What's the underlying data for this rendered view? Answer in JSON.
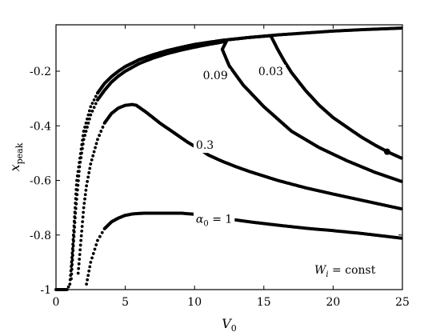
{
  "chart_data": {
    "type": "scatter",
    "xlabel": "V",
    "xlabel_sub": "0",
    "ylabel": "x",
    "ylabel_sub": "peak",
    "xlim": [
      0,
      25
    ],
    "ylim": [
      -1,
      -0.03
    ],
    "xticks": [
      0,
      5,
      10,
      15,
      20,
      25
    ],
    "yticks": [
      -1,
      -0.8,
      -0.6,
      -0.4,
      -0.2
    ],
    "xtick_labels": [
      "0",
      "5",
      "10",
      "15",
      "20",
      "25"
    ],
    "ytick_labels": [
      "-1",
      "-0.8",
      "-0.6",
      "-0.4",
      "-0.2"
    ],
    "grid": false,
    "annotation": "W_i = const",
    "annotation_main": "W",
    "annotation_sub": "i",
    "annotation_rest": " = const",
    "marker": {
      "x": 23.9,
      "y": -0.495
    },
    "series": [
      {
        "name": "1",
        "label_text": "α",
        "label_sub": "0",
        "label_rest": " = 1",
        "label_at": {
          "x": 10.1,
          "y": -0.74
        },
        "x": [
          2.2,
          2.5,
          3.0,
          3.5,
          4.0,
          4.5,
          5.0,
          5.5,
          6.0,
          6.5,
          7.0,
          8.0,
          9.0,
          10.0,
          11.0,
          12.0,
          14.0,
          16.0,
          18.0,
          20.0,
          22.0,
          24.0,
          25.0
        ],
        "y": [
          -0.98,
          -0.9,
          -0.82,
          -0.777,
          -0.752,
          -0.738,
          -0.728,
          -0.723,
          -0.721,
          -0.72,
          -0.72,
          -0.72,
          -0.72,
          -0.724,
          -0.73,
          -0.738,
          -0.752,
          -0.764,
          -0.775,
          -0.784,
          -0.794,
          -0.806,
          -0.812
        ]
      },
      {
        "name": "0.3",
        "label_text": "0.3",
        "label_at": {
          "x": 10.1,
          "y": -0.47
        },
        "x": [
          1.6,
          1.8,
          2.0,
          2.2,
          2.5,
          3.0,
          3.5,
          4.0,
          4.5,
          5.0,
          5.5,
          5.8,
          6.5,
          7.5,
          8.5,
          9.5,
          10.5,
          11.0,
          12.0,
          13.0,
          14.0,
          16.0,
          18.0,
          20.0,
          22.0,
          24.0,
          25.0
        ],
        "y": [
          -0.94,
          -0.82,
          -0.7,
          -0.62,
          -0.54,
          -0.45,
          -0.39,
          -0.355,
          -0.335,
          -0.325,
          -0.322,
          -0.325,
          -0.35,
          -0.39,
          -0.425,
          -0.46,
          -0.49,
          -0.507,
          -0.53,
          -0.55,
          -0.568,
          -0.6,
          -0.627,
          -0.65,
          -0.672,
          -0.694,
          -0.705
        ]
      },
      {
        "name": "0.09",
        "label_text": "0.09",
        "label_at": {
          "x": 10.6,
          "y": -0.215
        },
        "x": [
          1.1,
          1.4,
          1.7,
          2.0,
          2.5,
          3.0,
          3.5,
          4.0,
          4.5,
          5.0,
          6.0,
          7.0,
          8.0,
          9.0,
          10.0,
          11.0,
          11.6,
          12.3,
          12.0,
          12.5,
          13.5,
          15.0,
          17.0,
          19.0,
          21.0,
          23.0,
          25.0
        ],
        "y": [
          -0.96,
          -0.72,
          -0.55,
          -0.45,
          -0.36,
          -0.305,
          -0.27,
          -0.24,
          -0.218,
          -0.2,
          -0.172,
          -0.152,
          -0.136,
          -0.123,
          -0.112,
          -0.102,
          -0.097,
          -0.09,
          -0.12,
          -0.18,
          -0.25,
          -0.33,
          -0.42,
          -0.48,
          -0.528,
          -0.57,
          -0.605
        ]
      },
      {
        "name": "0.03",
        "label_text": "0.03",
        "label_at": {
          "x": 14.6,
          "y": -0.2
        },
        "x": [
          0.0,
          0.4,
          0.8,
          1.0,
          1.2,
          1.5,
          2.0,
          2.5,
          3.0,
          3.5,
          4.0,
          4.5,
          5.0,
          6.0,
          7.0,
          8.0,
          9.0,
          10.0,
          12.0,
          14.0,
          15.5,
          16.0,
          16.5,
          17.0,
          18.0,
          19.0,
          20.0,
          21.0,
          22.0,
          23.0,
          24.0,
          25.0
        ],
        "y": [
          -1.0,
          -1.0,
          -1.0,
          -0.98,
          -0.85,
          -0.6,
          -0.42,
          -0.33,
          -0.28,
          -0.245,
          -0.22,
          -0.2,
          -0.183,
          -0.158,
          -0.14,
          -0.125,
          -0.113,
          -0.102,
          -0.087,
          -0.076,
          -0.07,
          -0.12,
          -0.165,
          -0.205,
          -0.27,
          -0.325,
          -0.37,
          -0.405,
          -0.44,
          -0.47,
          -0.497,
          -0.52
        ]
      },
      {
        "name": "envelope",
        "x": [
          5.0,
          6.0,
          7.0,
          8.0,
          9.0,
          10.0,
          12.0,
          14.0,
          16.0,
          18.0,
          20.0,
          22.0,
          24.0,
          25.0
        ],
        "y": [
          -0.183,
          -0.158,
          -0.14,
          -0.125,
          -0.113,
          -0.102,
          -0.087,
          -0.076,
          -0.067,
          -0.06,
          -0.053,
          -0.048,
          -0.044,
          -0.042
        ]
      }
    ]
  }
}
